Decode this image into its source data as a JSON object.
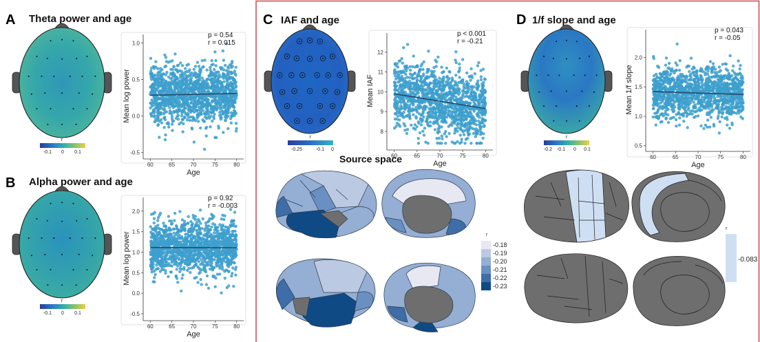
{
  "panels": {
    "A": {
      "letter": "A",
      "title": "Theta power and age"
    },
    "B": {
      "letter": "B",
      "title": "Alpha power and age"
    },
    "C": {
      "letter": "C",
      "title": "IAF and age",
      "source_label": "Source space"
    },
    "D": {
      "letter": "D",
      "title": "1/f slope and age"
    }
  },
  "colors": {
    "scatter_point": "#3d9fcc",
    "fit_line": "#24486b",
    "c_frame": "#c94a4a",
    "brain_gray": "#6e6e6e",
    "head_outline": "#222222",
    "ear_fill": "#555555"
  },
  "topomaps": {
    "theta": {
      "colorbar": {
        "label": "r",
        "ticks": [
          "-0.1",
          "0",
          "0.1"
        ],
        "gradient": [
          "#2a3d9a",
          "#2a7fc8",
          "#35b3a4",
          "#8cc56b",
          "#f2cc45"
        ]
      }
    },
    "alpha": {
      "colorbar": {
        "label": "r",
        "ticks": [
          "-0.1",
          "0",
          "0.1"
        ],
        "gradient": [
          "#2a3d9a",
          "#2a7fc8",
          "#35b3a4",
          "#8cc56b",
          "#f2cc45"
        ]
      }
    },
    "iaf": {
      "colorbar": {
        "label": "r",
        "ticks": [
          "-0.25",
          "-0.1",
          "0"
        ],
        "gradient": [
          "#2a3d9a",
          "#2a6fc4",
          "#2a9fcc",
          "#35b3c4"
        ]
      }
    },
    "slope": {
      "colorbar": {
        "label": "r",
        "ticks": [
          "-0.2",
          "-0.1",
          "0",
          "0.1"
        ],
        "gradient": [
          "#2a3d9a",
          "#2a7fc8",
          "#35b3a4",
          "#8cc56b",
          "#f2cc45"
        ]
      }
    }
  },
  "source_colorbars": {
    "iaf": {
      "label": "r",
      "ticks": [
        "-0.18",
        "-0.19",
        "-0.20",
        "-0.21",
        "-0.22",
        "-0.23"
      ],
      "colors": [
        "#e8e8f3",
        "#bcc9e2",
        "#94aed4",
        "#6a90c2",
        "#3e6da8",
        "#0f4a85"
      ]
    },
    "slope": {
      "label": "r",
      "value": "-0.083",
      "color": "#cfdff3"
    }
  },
  "chart_data": [
    {
      "id": "theta",
      "type": "scatter",
      "xlabel": "Age",
      "ylabel": "Mean log power",
      "xlim": [
        59,
        81
      ],
      "ylim": [
        -0.55,
        1.1
      ],
      "xticks": [
        "60",
        "65",
        "70",
        "75",
        "80"
      ],
      "yticks": [
        "-0.5",
        "0.0",
        "0.5",
        "1.0"
      ],
      "stats": {
        "p": "p = 0.54",
        "r": "r = 0.015"
      },
      "fit": {
        "x": [
          60,
          80
        ],
        "y": [
          0.285,
          0.31
        ]
      },
      "points": {
        "n": 1400,
        "seed": 11,
        "x_range": [
          60,
          80
        ],
        "y_mean": 0.3,
        "y_sd": 0.2,
        "y_min": -0.5,
        "y_max": 1.05
      }
    },
    {
      "id": "alpha",
      "type": "scatter",
      "xlabel": "Age",
      "ylabel": "Mean log power",
      "xlim": [
        59,
        81
      ],
      "ylim": [
        -0.6,
        2.3
      ],
      "xticks": [
        "60",
        "65",
        "70",
        "75",
        "80"
      ],
      "yticks": [
        "-0.5",
        "0.0",
        "0.5",
        "1.0",
        "1.5",
        "2.0"
      ],
      "stats": {
        "p": "p = 0.92",
        "r": "r = -0.003"
      },
      "fit": {
        "x": [
          60,
          80
        ],
        "y": [
          1.115,
          1.11
        ]
      },
      "points": {
        "n": 1400,
        "seed": 23,
        "x_range": [
          60,
          80
        ],
        "y_mean": 1.1,
        "y_sd": 0.32,
        "y_min": -0.5,
        "y_max": 2.25
      }
    },
    {
      "id": "iaf",
      "type": "scatter",
      "xlabel": "Age",
      "ylabel": "Mean IAF",
      "xlim": [
        59,
        81
      ],
      "ylim": [
        7.2,
        12.9
      ],
      "xticks": [
        "60",
        "65",
        "70",
        "75",
        "80"
      ],
      "yticks": [
        "8",
        "9",
        "10",
        "11",
        "12"
      ],
      "stats": {
        "p": "p < 0.001",
        "r": "r = -0.21"
      },
      "fit": {
        "x": [
          60,
          80
        ],
        "y": [
          9.9,
          9.15
        ]
      },
      "points": {
        "n": 1300,
        "seed": 37,
        "x_range": [
          60,
          80
        ],
        "y_mean": 9.55,
        "y_sd": 0.85,
        "y_min": 7.4,
        "y_max": 12.6,
        "slope": -0.0375,
        "x0": 70
      }
    },
    {
      "id": "slope",
      "type": "scatter",
      "xlabel": "Age",
      "ylabel": "Mean 1/f slope",
      "xlim": [
        59,
        81
      ],
      "ylim": [
        0.45,
        2.45
      ],
      "xticks": [
        "60",
        "65",
        "70",
        "75",
        "80"
      ],
      "yticks": [
        "0.5",
        "1.0",
        "1.5",
        "2.0"
      ],
      "stats": {
        "p": "p = 0.043",
        "r": "r = -0.05"
      },
      "fit": {
        "x": [
          60,
          80
        ],
        "y": [
          1.42,
          1.37
        ]
      },
      "points": {
        "n": 1300,
        "seed": 51,
        "x_range": [
          60,
          80
        ],
        "y_mean": 1.4,
        "y_sd": 0.22,
        "y_min": 0.55,
        "y_max": 2.35
      }
    }
  ]
}
